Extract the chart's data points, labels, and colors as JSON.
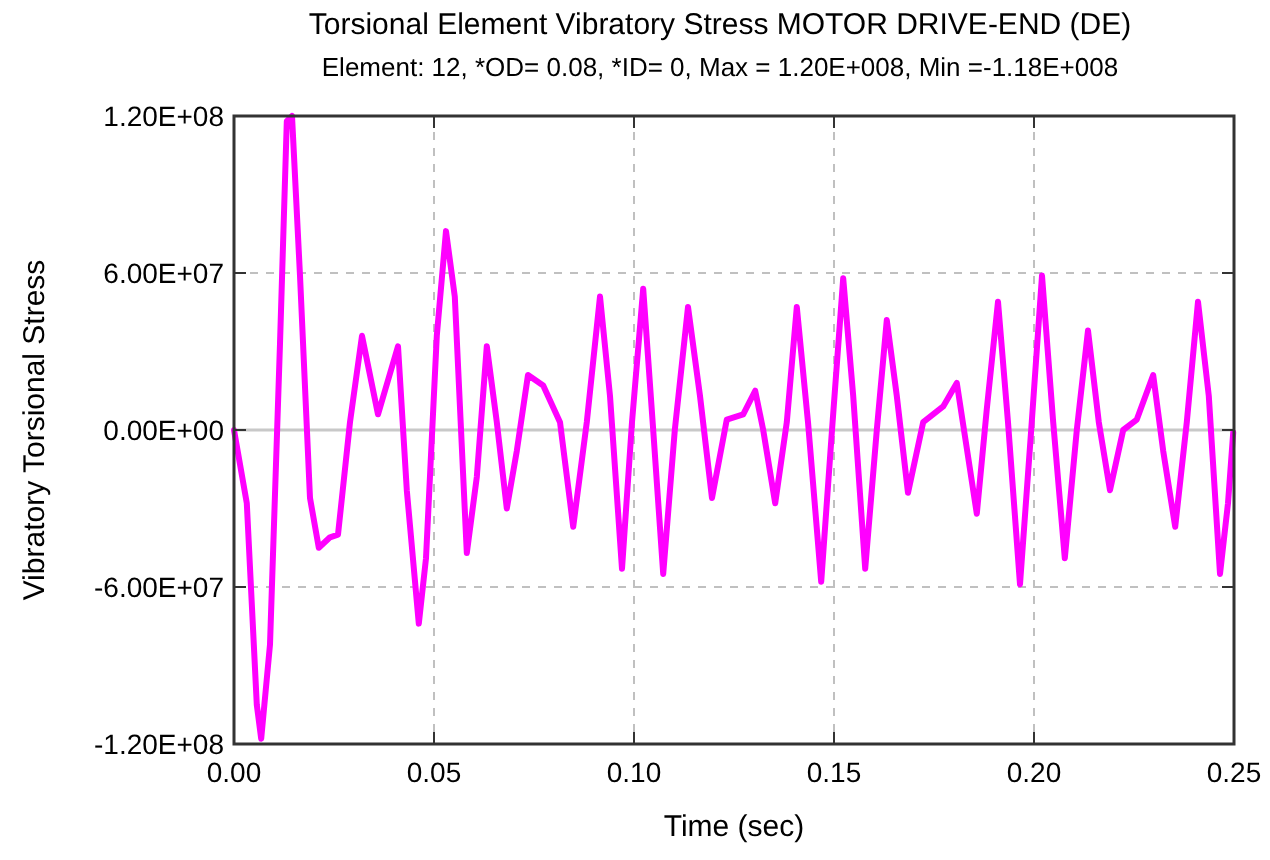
{
  "chart_data": {
    "type": "line",
    "title": "Torsional Element Vibratory Stress MOTOR DRIVE-END (DE)",
    "subtitle": "Element: 12, *OD= 0.08, *ID= 0, Max = 1.20E+008, Min =-1.18E+008",
    "xlabel": "Time (sec)",
    "ylabel": "Vibratory Torsional Stress",
    "series": [
      {
        "color": "#ff00ff",
        "x": [
          0,
          0.0032,
          0.0057,
          0.0068,
          0.009,
          0.0115,
          0.0132,
          0.0145,
          0.0165,
          0.019,
          0.0212,
          0.024,
          0.026,
          0.029,
          0.032,
          0.036,
          0.041,
          0.0432,
          0.0462,
          0.048,
          0.0507,
          0.053,
          0.0552,
          0.0582,
          0.0607,
          0.0632,
          0.0657,
          0.0682,
          0.0707,
          0.0735,
          0.0773,
          0.0815,
          0.0848,
          0.0882,
          0.0915,
          0.094,
          0.097,
          0.0995,
          0.1023,
          0.1048,
          0.1073,
          0.1102,
          0.1135,
          0.1165,
          0.1195,
          0.1232,
          0.1273,
          0.1303,
          0.1323,
          0.1353,
          0.1382,
          0.1407,
          0.1435,
          0.1468,
          0.1495,
          0.1523,
          0.1548,
          0.1578,
          0.1607,
          0.1632,
          0.1657,
          0.1685,
          0.1723,
          0.1773,
          0.1807,
          0.1828,
          0.1857,
          0.1882,
          0.191,
          0.1935,
          0.1965,
          0.1993,
          0.202,
          0.2048,
          0.2077,
          0.2107,
          0.2135,
          0.2162,
          0.219,
          0.2223,
          0.2257,
          0.2298,
          0.2323,
          0.2353,
          0.2382,
          0.241,
          0.2437,
          0.2465,
          0.2485,
          0.2498
        ],
        "values": [
          0,
          -28000000.0,
          -105000000.0,
          -118000000.0,
          -82000000.0,
          33000000.0,
          118000000.0,
          120000000.0,
          59000000.0,
          -26000000.0,
          -45000000.0,
          -41000000.0,
          -40000000.0,
          3000000.0,
          36000000.0,
          6000000.0,
          32000000.0,
          -23000000.0,
          -74000000.0,
          -49000000.0,
          36000000.0,
          76000000.0,
          51000000.0,
          -47000000.0,
          -18000000.0,
          32000000.0,
          3000000.0,
          -30000000.0,
          -8000000.0,
          21000000.0,
          17000000.0,
          3000000.0,
          -37000000.0,
          3000000.0,
          51000000.0,
          13000000.0,
          -53000000.0,
          3000000.0,
          54000000.0,
          0,
          -55000000.0,
          0,
          47000000.0,
          13000000.0,
          -26000000.0,
          4000000.0,
          6000000.0,
          15000000.0,
          0,
          -28000000.0,
          3000000.0,
          47000000.0,
          3000000.0,
          -58000000.0,
          0,
          58000000.0,
          13000000.0,
          -53000000.0,
          0,
          42000000.0,
          13000000.0,
          -24000000.0,
          3000000.0,
          9000000.0,
          18000000.0,
          -3000000.0,
          -32000000.0,
          8000000.0,
          49000000.0,
          3000000.0,
          -59000000.0,
          0,
          59000000.0,
          3000000.0,
          -49000000.0,
          0,
          38000000.0,
          3000000.0,
          -23000000.0,
          0,
          4000000.0,
          21000000.0,
          -8000000.0,
          -37000000.0,
          3000000.0,
          49000000.0,
          13000000.0,
          -55000000.0,
          -28000000.0,
          -1000000.0
        ]
      }
    ],
    "xlim": [
      0,
      0.25
    ],
    "xticks": [
      {
        "value": 0,
        "label": "0.00"
      },
      {
        "value": 0.05,
        "label": "0.05"
      },
      {
        "value": 0.1,
        "label": "0.10"
      },
      {
        "value": 0.15,
        "label": "0.15"
      },
      {
        "value": 0.2,
        "label": "0.20"
      },
      {
        "value": 0.25,
        "label": "0.25"
      }
    ],
    "ylim": [
      -120000000.0,
      120000000.0
    ],
    "yticks": [
      {
        "value": -120000000.0,
        "label": "-1.20E+08"
      },
      {
        "value": -60000000.0,
        "label": "-6.00E+07"
      },
      {
        "value": 0,
        "label": "0.00E+00"
      },
      {
        "value": 60000000.0,
        "label": "6.00E+07"
      },
      {
        "value": 120000000.0,
        "label": "1.20E+08"
      }
    ],
    "grid": true,
    "ref_lines": [
      {
        "axis": "y",
        "value": 0,
        "color": "#c8c8c8"
      }
    ],
    "line_style": "solid",
    "marker": "none"
  }
}
